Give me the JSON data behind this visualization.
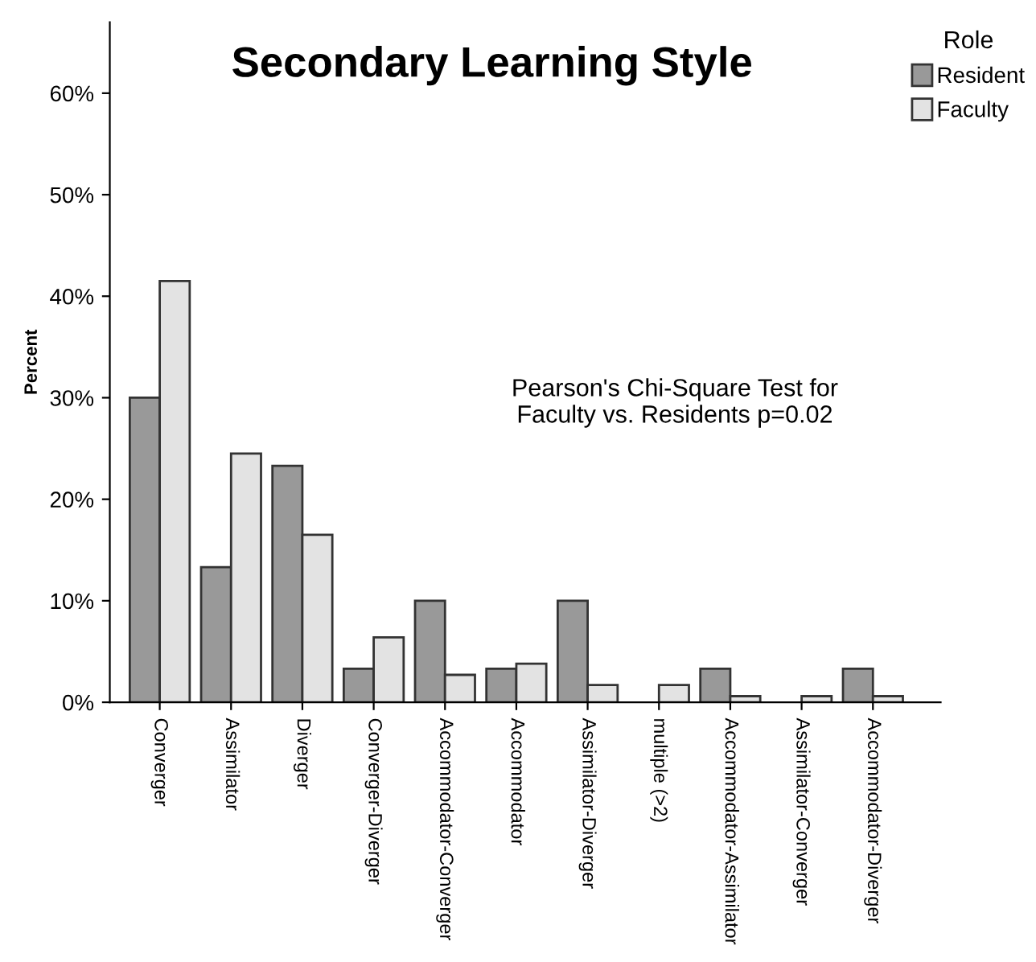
{
  "chart_data": {
    "type": "bar",
    "title": "Secondary Learning Style",
    "ylabel": "Percent",
    "legend_title": "Role",
    "categories": [
      "Converger",
      "Assimilator",
      "Diverger",
      "Converger-Diverger",
      "Accommodator-Converger",
      "Accommodator",
      "Assimilator-Diverger",
      "multiple (>2)",
      "Accommodator-Assimilator",
      "Assimilator-Converger",
      "Accommodator-Diverger"
    ],
    "series": [
      {
        "name": "Resident",
        "color": "#999999",
        "values": [
          30,
          13.3,
          23.3,
          3.3,
          10,
          3.3,
          10,
          0,
          3.3,
          0,
          3.3
        ]
      },
      {
        "name": "Faculty",
        "color": "#e3e3e3",
        "values": [
          41.5,
          24.5,
          16.5,
          6.4,
          2.7,
          3.8,
          1.7,
          1.7,
          0.6,
          0.6,
          0.6
        ]
      }
    ],
    "ylim": [
      0,
      67
    ],
    "yticks": [
      {
        "value": 0,
        "label": "0%"
      },
      {
        "value": 10,
        "label": "10%"
      },
      {
        "value": 20,
        "label": "20%"
      },
      {
        "value": 30,
        "label": "30%"
      },
      {
        "value": 40,
        "label": "40%"
      },
      {
        "value": 50,
        "label": "50%"
      },
      {
        "value": 60,
        "label": "60%"
      }
    ],
    "annotations": [
      "Pearson's Chi-Square Test for\nFaculty vs. Residents p=0.02"
    ],
    "legend": "top right",
    "grid": false
  }
}
